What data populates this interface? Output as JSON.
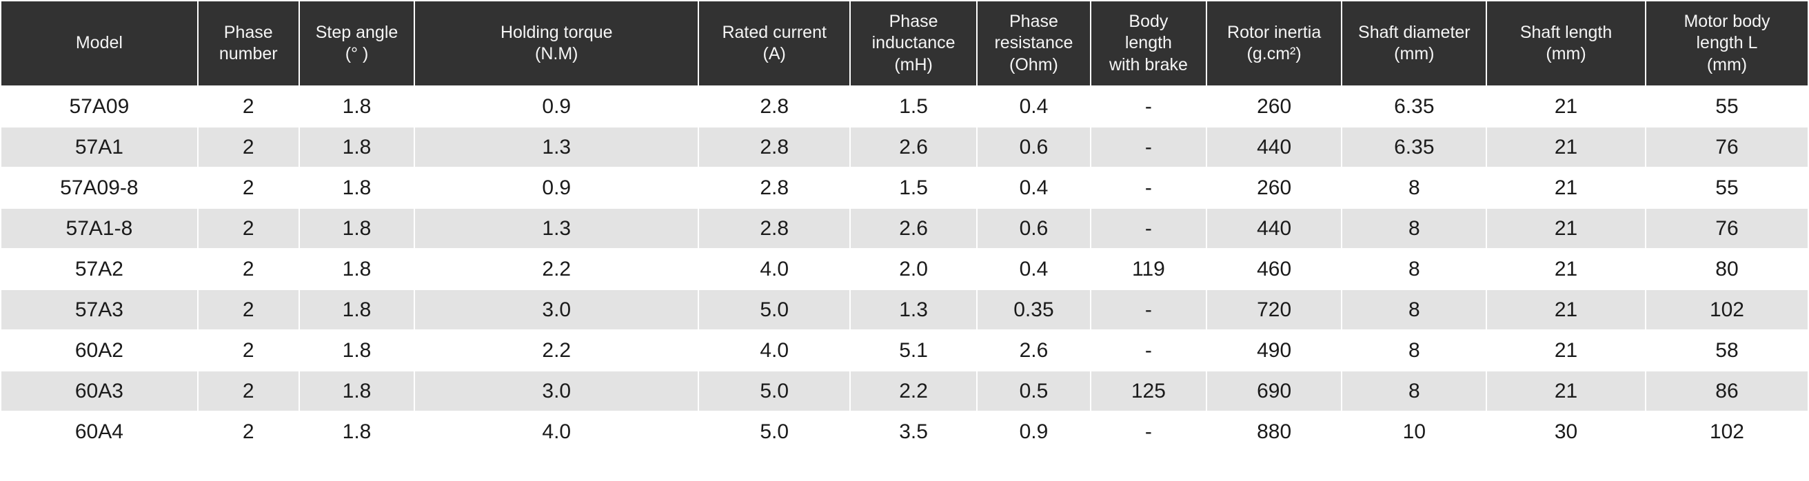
{
  "chart_data": {
    "type": "table",
    "columns": [
      {
        "label": "Model"
      },
      {
        "label": "Phase\nnumber"
      },
      {
        "label": "Step angle\n(° )"
      },
      {
        "label": "Holding torque\n(N.M)"
      },
      {
        "label": "Rated current\n(A)"
      },
      {
        "label": "Phase\ninductance\n(mH)"
      },
      {
        "label": "Phase\nresistance\n(Ohm)"
      },
      {
        "label": "Body\nlength\nwith brake"
      },
      {
        "label": "Rotor inertia\n(g.cm²)"
      },
      {
        "label": "Shaft diameter\n(mm)"
      },
      {
        "label": "Shaft length\n(mm)"
      },
      {
        "label": "Motor body\nlength L\n(mm)"
      }
    ],
    "rows": [
      [
        "57A09",
        "2",
        "1.8",
        "0.9",
        "2.8",
        "1.5",
        "0.4",
        "-",
        "260",
        "6.35",
        "21",
        "55"
      ],
      [
        "57A1",
        "2",
        "1.8",
        "1.3",
        "2.8",
        "2.6",
        "0.6",
        "-",
        "440",
        "6.35",
        "21",
        "76"
      ],
      [
        "57A09-8",
        "2",
        "1.8",
        "0.9",
        "2.8",
        "1.5",
        "0.4",
        "-",
        "260",
        "8",
        "21",
        "55"
      ],
      [
        "57A1-8",
        "2",
        "1.8",
        "1.3",
        "2.8",
        "2.6",
        "0.6",
        "-",
        "440",
        "8",
        "21",
        "76"
      ],
      [
        "57A2",
        "2",
        "1.8",
        "2.2",
        "4.0",
        "2.0",
        "0.4",
        "119",
        "460",
        "8",
        "21",
        "80"
      ],
      [
        "57A3",
        "2",
        "1.8",
        "3.0",
        "5.0",
        "1.3",
        "0.35",
        "-",
        "720",
        "8",
        "21",
        "102"
      ],
      [
        "60A2",
        "2",
        "1.8",
        "2.2",
        "4.0",
        "5.1",
        "2.6",
        "-",
        "490",
        "8",
        "21",
        "58"
      ],
      [
        "60A3",
        "2",
        "1.8",
        "3.0",
        "5.0",
        "2.2",
        "0.5",
        "125",
        "690",
        "8",
        "21",
        "86"
      ],
      [
        "60A4",
        "2",
        "1.8",
        "4.0",
        "5.0",
        "3.5",
        "0.9",
        "-",
        "880",
        "10",
        "30",
        "102"
      ]
    ]
  },
  "colors": {
    "header_bg": "#323232",
    "header_text": "#f5f5f5",
    "row_bg": "#ffffff",
    "row_alt_bg": "#e3e3e3",
    "body_text": "#1a1a1a",
    "grid": "#ffffff"
  }
}
